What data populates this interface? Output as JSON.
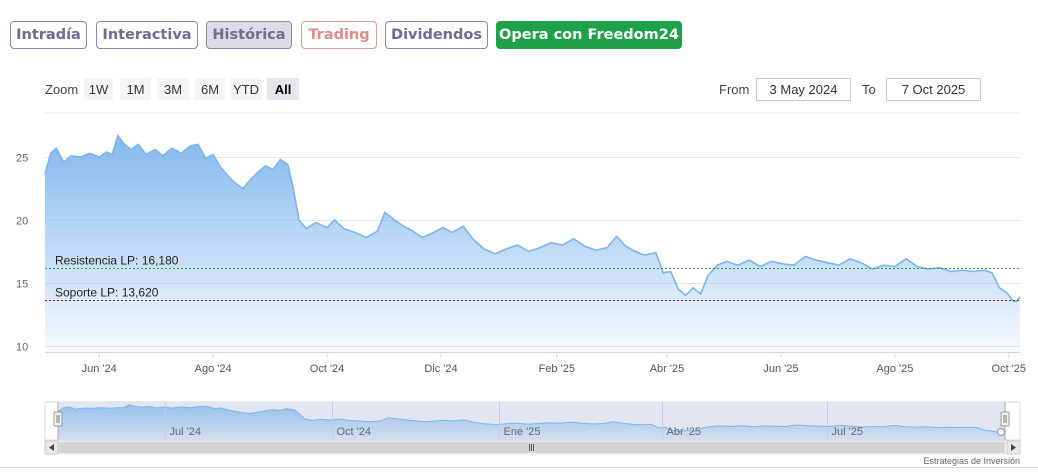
{
  "tabs": [
    {
      "label": "Intradía",
      "state": "normal"
    },
    {
      "label": "Interactiva",
      "state": "normal"
    },
    {
      "label": "Histórica",
      "state": "active"
    },
    {
      "label": "Trading",
      "state": "accent"
    },
    {
      "label": "Dividendos",
      "state": "normal"
    },
    {
      "label": "Opera con Freedom24",
      "state": "cta"
    }
  ],
  "zoom": {
    "label": "Zoom",
    "buttons": [
      "1W",
      "1M",
      "3M",
      "6M",
      "YTD",
      "All"
    ],
    "selected": "All"
  },
  "range": {
    "from_label": "From",
    "from_value": "3 May 2024",
    "to_label": "To",
    "to_value": "7 Oct 2025"
  },
  "credit": "Estrategias de Inversión",
  "colors": {
    "line": "#7cb5ec",
    "tab_text": "#6f6c95",
    "cta": "#1fa14a",
    "trading": "#df8d88",
    "resistance": "#2e9e44",
    "support": "#8b1c1c"
  },
  "chart_data": {
    "type": "area",
    "title": "",
    "xlabel": "",
    "ylabel": "",
    "x_range": [
      "2024-05-03",
      "2025-10-07"
    ],
    "ylim": [
      9.5,
      28.5
    ],
    "y_ticks": [
      10,
      15,
      20,
      25
    ],
    "x_ticks": [
      {
        "date": "2024-06-01",
        "label": "Jun '24"
      },
      {
        "date": "2024-08-01",
        "label": "Ago '24"
      },
      {
        "date": "2024-10-01",
        "label": "Oct '24"
      },
      {
        "date": "2024-12-01",
        "label": "Dic '24"
      },
      {
        "date": "2025-02-01",
        "label": "Feb '25"
      },
      {
        "date": "2025-04-01",
        "label": "Abr '25"
      },
      {
        "date": "2025-06-01",
        "label": "Jun '25"
      },
      {
        "date": "2025-08-01",
        "label": "Ago '25"
      },
      {
        "date": "2025-10-01",
        "label": "Oct '25"
      }
    ],
    "navigator_ticks": [
      {
        "date": "2024-07-01",
        "label": "Jul '24"
      },
      {
        "date": "2024-10-01",
        "label": "Oct '24"
      },
      {
        "date": "2025-01-01",
        "label": "Ene '25"
      },
      {
        "date": "2025-04-01",
        "label": "Abr '25"
      },
      {
        "date": "2025-07-01",
        "label": "Jul '25"
      }
    ],
    "series": [
      {
        "points": [
          [
            "2024-05-03",
            23.6
          ],
          [
            "2024-05-06",
            25.3
          ],
          [
            "2024-05-09",
            25.7
          ],
          [
            "2024-05-13",
            24.6
          ],
          [
            "2024-05-17",
            25.1
          ],
          [
            "2024-05-22",
            25.0
          ],
          [
            "2024-05-27",
            25.3
          ],
          [
            "2024-06-01",
            25.0
          ],
          [
            "2024-06-05",
            25.4
          ],
          [
            "2024-06-08",
            25.2
          ],
          [
            "2024-06-11",
            26.7
          ],
          [
            "2024-06-14",
            26.1
          ],
          [
            "2024-06-18",
            25.6
          ],
          [
            "2024-06-22",
            26.0
          ],
          [
            "2024-06-26",
            25.2
          ],
          [
            "2024-07-01",
            25.6
          ],
          [
            "2024-07-05",
            25.1
          ],
          [
            "2024-07-10",
            25.7
          ],
          [
            "2024-07-15",
            25.3
          ],
          [
            "2024-07-20",
            25.9
          ],
          [
            "2024-07-24",
            26.0
          ],
          [
            "2024-07-28",
            24.9
          ],
          [
            "2024-08-01",
            25.2
          ],
          [
            "2024-08-05",
            24.2
          ],
          [
            "2024-08-09",
            23.5
          ],
          [
            "2024-08-13",
            22.9
          ],
          [
            "2024-08-17",
            22.5
          ],
          [
            "2024-08-21",
            23.2
          ],
          [
            "2024-08-25",
            23.8
          ],
          [
            "2024-08-29",
            24.3
          ],
          [
            "2024-09-02",
            24.0
          ],
          [
            "2024-09-06",
            24.8
          ],
          [
            "2024-09-10",
            24.4
          ],
          [
            "2024-09-13",
            22.5
          ],
          [
            "2024-09-16",
            20.0
          ],
          [
            "2024-09-20",
            19.3
          ],
          [
            "2024-09-25",
            19.8
          ],
          [
            "2024-10-01",
            19.4
          ],
          [
            "2024-10-05",
            20.0
          ],
          [
            "2024-10-10",
            19.3
          ],
          [
            "2024-10-16",
            19.0
          ],
          [
            "2024-10-22",
            18.6
          ],
          [
            "2024-10-28",
            19.1
          ],
          [
            "2024-11-01",
            20.6
          ],
          [
            "2024-11-06",
            20.0
          ],
          [
            "2024-11-11",
            19.5
          ],
          [
            "2024-11-16",
            19.1
          ],
          [
            "2024-11-21",
            18.6
          ],
          [
            "2024-11-27",
            19.0
          ],
          [
            "2024-12-02",
            19.4
          ],
          [
            "2024-12-07",
            19.0
          ],
          [
            "2024-12-13",
            19.5
          ],
          [
            "2024-12-18",
            18.5
          ],
          [
            "2024-12-24",
            17.7
          ],
          [
            "2024-12-30",
            17.3
          ],
          [
            "2025-01-05",
            17.7
          ],
          [
            "2025-01-11",
            18.0
          ],
          [
            "2025-01-17",
            17.5
          ],
          [
            "2025-01-23",
            17.8
          ],
          [
            "2025-01-29",
            18.2
          ],
          [
            "2025-02-04",
            18.0
          ],
          [
            "2025-02-10",
            18.5
          ],
          [
            "2025-02-16",
            17.9
          ],
          [
            "2025-02-22",
            17.6
          ],
          [
            "2025-02-28",
            17.8
          ],
          [
            "2025-03-05",
            18.7
          ],
          [
            "2025-03-10",
            17.9
          ],
          [
            "2025-03-15",
            17.5
          ],
          [
            "2025-03-20",
            17.2
          ],
          [
            "2025-03-26",
            17.4
          ],
          [
            "2025-03-30",
            15.8
          ],
          [
            "2025-04-03",
            15.9
          ],
          [
            "2025-04-07",
            14.5
          ],
          [
            "2025-04-11",
            14.0
          ],
          [
            "2025-04-15",
            14.6
          ],
          [
            "2025-04-19",
            14.1
          ],
          [
            "2025-04-23",
            15.6
          ],
          [
            "2025-04-28",
            16.4
          ],
          [
            "2025-05-03",
            16.7
          ],
          [
            "2025-05-09",
            16.4
          ],
          [
            "2025-05-15",
            16.8
          ],
          [
            "2025-05-21",
            16.3
          ],
          [
            "2025-05-27",
            16.7
          ],
          [
            "2025-06-02",
            16.5
          ],
          [
            "2025-06-08",
            16.4
          ],
          [
            "2025-06-14",
            17.1
          ],
          [
            "2025-06-20",
            16.8
          ],
          [
            "2025-06-26",
            16.6
          ],
          [
            "2025-07-02",
            16.4
          ],
          [
            "2025-07-08",
            16.9
          ],
          [
            "2025-07-14",
            16.6
          ],
          [
            "2025-07-20",
            16.1
          ],
          [
            "2025-07-26",
            16.4
          ],
          [
            "2025-08-01",
            16.3
          ],
          [
            "2025-08-07",
            16.9
          ],
          [
            "2025-08-13",
            16.3
          ],
          [
            "2025-08-19",
            16.1
          ],
          [
            "2025-08-25",
            16.2
          ],
          [
            "2025-08-31",
            15.9
          ],
          [
            "2025-09-06",
            16.0
          ],
          [
            "2025-09-12",
            15.9
          ],
          [
            "2025-09-18",
            16.0
          ],
          [
            "2025-09-22",
            15.8
          ],
          [
            "2025-09-26",
            14.6
          ],
          [
            "2025-09-30",
            14.2
          ],
          [
            "2025-10-03",
            13.6
          ],
          [
            "2025-10-05",
            13.5
          ],
          [
            "2025-10-07",
            13.9
          ]
        ]
      }
    ],
    "annotations": [
      {
        "label": "Resistencia LP: 16,180",
        "value": 16.18,
        "style": "dashed",
        "color": "#2e9e44"
      },
      {
        "label": "Soporte LP: 13,620",
        "value": 13.62,
        "style": "dashed",
        "color": "#8b1c1c"
      }
    ],
    "grid": true,
    "legend": "none"
  }
}
